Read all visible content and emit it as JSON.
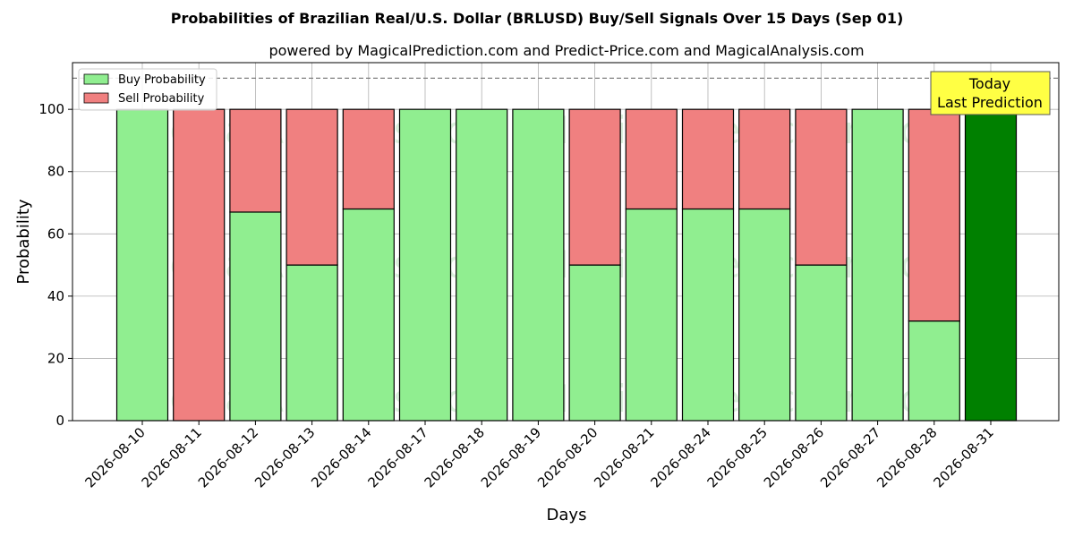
{
  "chart_data": {
    "type": "bar",
    "stacked": true,
    "title": "Probabilities of Brazilian Real/U.S. Dollar (BRLUSD) Buy/Sell Signals Over 15 Days (Sep 01)",
    "subtitle": "powered by MagicalPrediction.com and Predict-Price.com and MagicalAnalysis.com",
    "xlabel": "Days",
    "ylabel": "Probability",
    "ylim": [
      0,
      115
    ],
    "yticks": [
      0,
      20,
      40,
      60,
      80,
      100
    ],
    "reference_line": 110,
    "grid": true,
    "legend_position": "top-left",
    "categories": [
      "2026-08-10",
      "2026-08-11",
      "2026-08-12",
      "2026-08-13",
      "2026-08-14",
      "2026-08-17",
      "2026-08-18",
      "2026-08-19",
      "2026-08-20",
      "2026-08-21",
      "2026-08-24",
      "2026-08-25",
      "2026-08-26",
      "2026-08-27",
      "2026-08-28",
      "2026-08-31"
    ],
    "series": [
      {
        "name": "Buy Probability",
        "color": "#90ee90",
        "values": [
          100,
          0,
          67,
          50,
          68,
          100,
          100,
          100,
          50,
          68,
          68,
          68,
          50,
          100,
          32,
          100
        ]
      },
      {
        "name": "Sell Probability",
        "color": "#f08080",
        "values": [
          0,
          100,
          33,
          50,
          32,
          0,
          0,
          0,
          50,
          32,
          32,
          32,
          50,
          0,
          68,
          0
        ]
      }
    ],
    "highlight": {
      "index": 15,
      "color": "#008000"
    },
    "annotation": {
      "line1": "Today",
      "line2": "Last Prediction",
      "background": "#ffff44"
    },
    "watermarks": [
      "MagicalAnalysis.com",
      "MagicalPrediction.com"
    ]
  }
}
